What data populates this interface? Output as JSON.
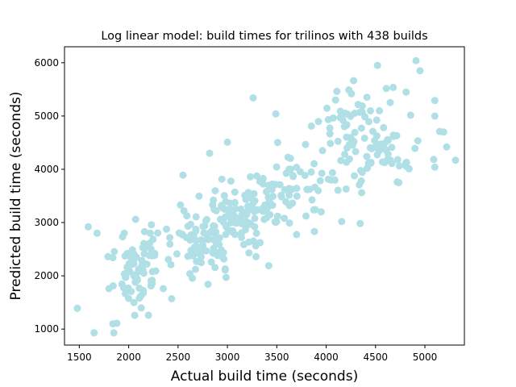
{
  "chart_data": {
    "type": "scatter",
    "title": "Log linear model: build times for trilinos with 438 builds",
    "xlabel": "Actual build time (seconds)",
    "ylabel": "Predicted build time (seconds)",
    "xlim": [
      1350,
      5400
    ],
    "ylim": [
      700,
      6300
    ],
    "xticks": [
      1500,
      2000,
      2500,
      3000,
      3500,
      4000,
      4500,
      5000
    ],
    "yticks": [
      1000,
      2000,
      3000,
      4000,
      5000,
      6000
    ],
    "grid": false,
    "legend": "none",
    "point_color": "#b0e0e6",
    "n_points": 438,
    "outlier_points": [
      {
        "x": 1480,
        "y": 1390
      },
      {
        "x": 1590,
        "y": 2920
      },
      {
        "x": 1650,
        "y": 930
      },
      {
        "x": 1680,
        "y": 2800
      },
      {
        "x": 1790,
        "y": 2360
      },
      {
        "x": 1840,
        "y": 2340
      },
      {
        "x": 1850,
        "y": 930
      },
      {
        "x": 1840,
        "y": 1100
      },
      {
        "x": 1880,
        "y": 1110
      },
      {
        "x": 2070,
        "y": 3060
      },
      {
        "x": 2200,
        "y": 1260
      },
      {
        "x": 2230,
        "y": 2960
      },
      {
        "x": 2550,
        "y": 3890
      },
      {
        "x": 2560,
        "y": 3220
      },
      {
        "x": 3260,
        "y": 5340
      },
      {
        "x": 3290,
        "y": 2360
      },
      {
        "x": 3490,
        "y": 5040
      },
      {
        "x": 3850,
        "y": 4810
      },
      {
        "x": 4230,
        "y": 5490
      },
      {
        "x": 4520,
        "y": 5950
      },
      {
        "x": 4910,
        "y": 6040
      },
      {
        "x": 4950,
        "y": 5850
      },
      {
        "x": 4810,
        "y": 5450
      },
      {
        "x": 5150,
        "y": 4710
      },
      {
        "x": 5190,
        "y": 4700
      },
      {
        "x": 5220,
        "y": 4420
      },
      {
        "x": 5310,
        "y": 4170
      },
      {
        "x": 4720,
        "y": 3760
      },
      {
        "x": 4360,
        "y": 3560
      },
      {
        "x": 3920,
        "y": 3600
      },
      {
        "x": 3950,
        "y": 3200
      },
      {
        "x": 2850,
        "y": 3330
      },
      {
        "x": 2350,
        "y": 1760
      },
      {
        "x": 2620,
        "y": 2040
      },
      {
        "x": 2820,
        "y": 4300
      },
      {
        "x": 3000,
        "y": 4510
      }
    ],
    "clusters": [
      {
        "cx": 2080,
        "cy": 2150,
        "sx": 120,
        "sy": 380,
        "n": 75
      },
      {
        "cx": 2750,
        "cy": 2650,
        "sx": 200,
        "sy": 350,
        "n": 70
      },
      {
        "cx": 3150,
        "cy": 3150,
        "sx": 230,
        "sy": 330,
        "n": 90
      },
      {
        "cx": 3650,
        "cy": 3700,
        "sx": 250,
        "sy": 450,
        "n": 60
      },
      {
        "cx": 4450,
        "cy": 4350,
        "sx": 250,
        "sy": 330,
        "n": 70
      },
      {
        "cx": 4400,
        "cy": 4900,
        "sx": 330,
        "sy": 380,
        "n": 37
      }
    ],
    "seed": 438
  }
}
